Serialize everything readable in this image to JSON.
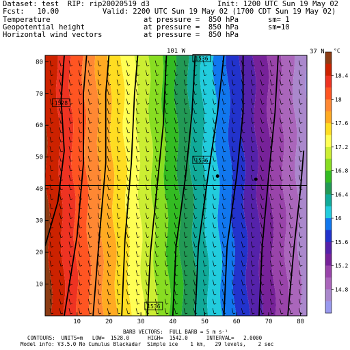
{
  "header": {
    "dataset": "Dataset: test  RIP: rip20020519 d3",
    "init": "Init: 1200 UTC Sun 19 May 02",
    "fcst": "Fcst:   10.00",
    "valid": "Valid: 2200 UTC Sun 19 May 02 (1700 CDT Sun 19 May 02)",
    "field1_name": "Temperature",
    "field1_level": "at pressure =  850 hPa",
    "field1_sm": "sm= 1",
    "field2_name": "Geopotential height",
    "field2_level": "at pressure =  850 hPa",
    "field2_sm": "sm=10",
    "field3_name": "Horizontal wind vectors",
    "field3_level": "at pressure =  850 hPa"
  },
  "footer": {
    "barb": "BARB VECTORS:  FULL BARB = 5 m s⁻¹",
    "contours": "CONTOURS:  UNITS=m   LOW=  1528.0      HIGH=  1542.0      INTERVAL=   2.0000",
    "model": "Model info: V3.5.0 No Cumulus Blackadar  Simple ice    1 km,   29 levels,    2 sec"
  },
  "chart_data": {
    "type": "heatmap",
    "title": "",
    "top_label": "101 W",
    "side_label": "37 N",
    "xlim": [
      0,
      82
    ],
    "ylim": [
      0,
      82
    ],
    "x_ticks": [
      10,
      20,
      30,
      40,
      50,
      60,
      70,
      80
    ],
    "y_ticks": [
      10,
      20,
      30,
      40,
      50,
      60,
      70,
      80
    ],
    "reference_line_y": 41,
    "colorbar": {
      "unit": "°C",
      "tick_labels": [
        "18.4",
        "18",
        "17.6",
        "17.2",
        "16.8",
        "16.4",
        "16",
        "15.6",
        "15.2",
        "14.8"
      ],
      "colors": [
        "#8c3c14",
        "#cc2200",
        "#ee3322",
        "#ff5522",
        "#ff8833",
        "#ffaa22",
        "#ffdd22",
        "#ffff55",
        "#ccee33",
        "#88dd22",
        "#33bb22",
        "#229955",
        "#11aa99",
        "#22ccdd",
        "#1177ee",
        "#2233cc",
        "#5522aa",
        "#772299",
        "#9944aa",
        "#aa66bb",
        "#aa88cc",
        "#9999ee"
      ]
    },
    "height_contours": [
      {
        "label": "1528",
        "points": [
          [
            0,
            22
          ],
          [
            4,
            36
          ],
          [
            6,
            52
          ],
          [
            5,
            68
          ],
          [
            6,
            82
          ]
        ]
      },
      {
        "label": "",
        "points": [
          [
            6,
            0
          ],
          [
            10,
            25
          ],
          [
            12,
            48
          ],
          [
            12,
            70
          ],
          [
            13,
            82
          ]
        ]
      },
      {
        "label": "",
        "points": [
          [
            15,
            0
          ],
          [
            17,
            25
          ],
          [
            19,
            48
          ],
          [
            19,
            70
          ],
          [
            20,
            82
          ]
        ]
      },
      {
        "label": "",
        "points": [
          [
            24,
            0
          ],
          [
            25,
            24
          ],
          [
            27,
            48
          ],
          [
            28,
            70
          ],
          [
            29,
            82
          ]
        ]
      },
      {
        "label": "1536",
        "points": [
          [
            32,
            0
          ],
          [
            33,
            20
          ],
          [
            35,
            40
          ],
          [
            37,
            60
          ],
          [
            38,
            82
          ]
        ]
      },
      {
        "label": "",
        "points": [
          [
            40,
            0
          ],
          [
            41,
            22
          ],
          [
            44,
            44
          ],
          [
            46,
            64
          ],
          [
            47,
            82
          ]
        ]
      },
      {
        "label": "1536",
        "points": [
          [
            47,
            0
          ],
          [
            48,
            22
          ],
          [
            51,
            44
          ],
          [
            54,
            64
          ],
          [
            56,
            82
          ]
        ]
      },
      {
        "label": "",
        "points": [
          [
            56,
            0
          ],
          [
            57,
            22
          ],
          [
            60,
            44
          ],
          [
            62,
            64
          ],
          [
            62,
            82
          ]
        ]
      },
      {
        "label": "",
        "points": [
          [
            67,
            0
          ],
          [
            68,
            22
          ],
          [
            70,
            44
          ],
          [
            72,
            64
          ],
          [
            73,
            82
          ]
        ]
      },
      {
        "label": "",
        "points": [
          [
            76,
            0
          ],
          [
            78,
            22
          ],
          [
            80,
            40
          ],
          [
            81,
            52
          ]
        ]
      }
    ],
    "contour_labels": [
      {
        "text": "1528",
        "x": 5,
        "y": 67
      },
      {
        "text": "1536",
        "x": 49,
        "y": 49
      },
      {
        "text": "1536",
        "x": 49,
        "y": 81
      },
      {
        "text": "1536",
        "x": 34,
        "y": 3
      }
    ],
    "markers": [
      [
        54,
        44
      ],
      [
        66,
        43
      ]
    ]
  }
}
